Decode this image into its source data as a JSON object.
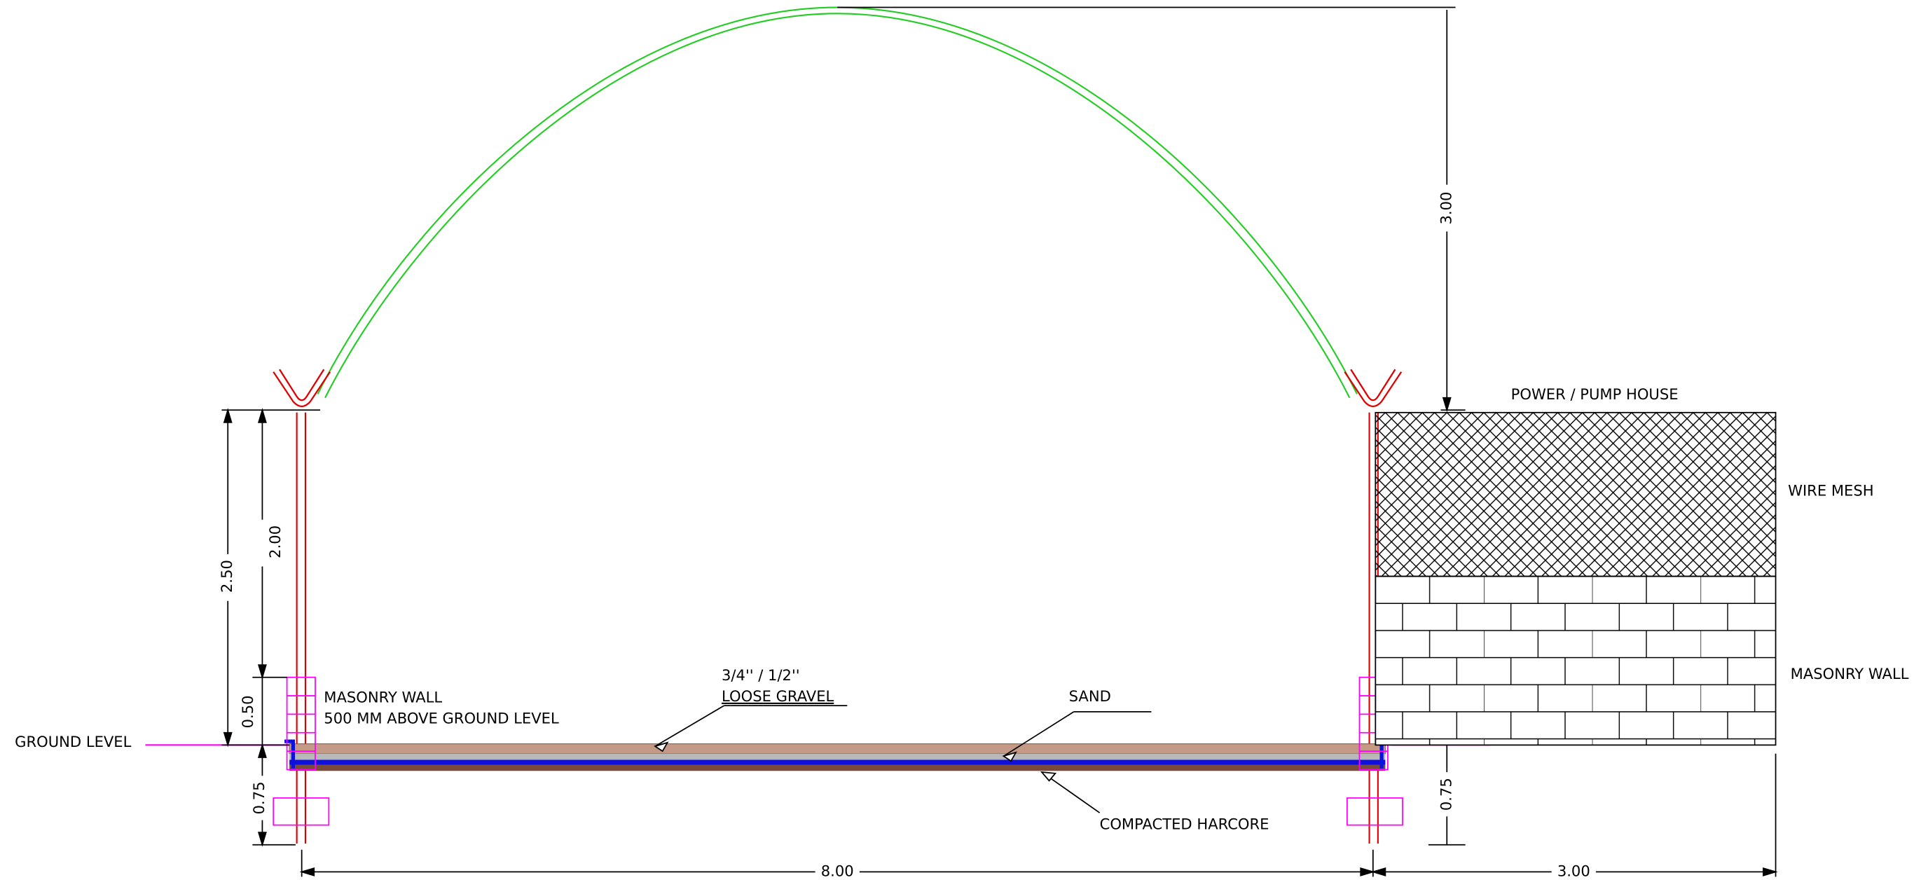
{
  "labels": {
    "ground_level": "GROUND LEVEL",
    "masonry_wall_left": "MASONRY WALL",
    "masonry_wall_note": "500 MM ABOVE GROUND LEVEL",
    "gravel_size": "3/4'' / 1/2''",
    "gravel": "LOOSE GRAVEL",
    "sand": "SAND",
    "harcore": "COMPACTED HARCORE",
    "pump_house": "POWER / PUMP HOUSE",
    "wire_mesh": "WIRE MESH",
    "masonry_wall_right": "MASONRY WALL"
  },
  "dimensions": {
    "arch_height": "3.00",
    "post_height": "2.50",
    "post_above_wall": "2.00",
    "wall_height": "0.50",
    "footing_left": "0.75",
    "footing_right": "0.75",
    "span": "8.00",
    "pump_house_width": "3.00"
  }
}
